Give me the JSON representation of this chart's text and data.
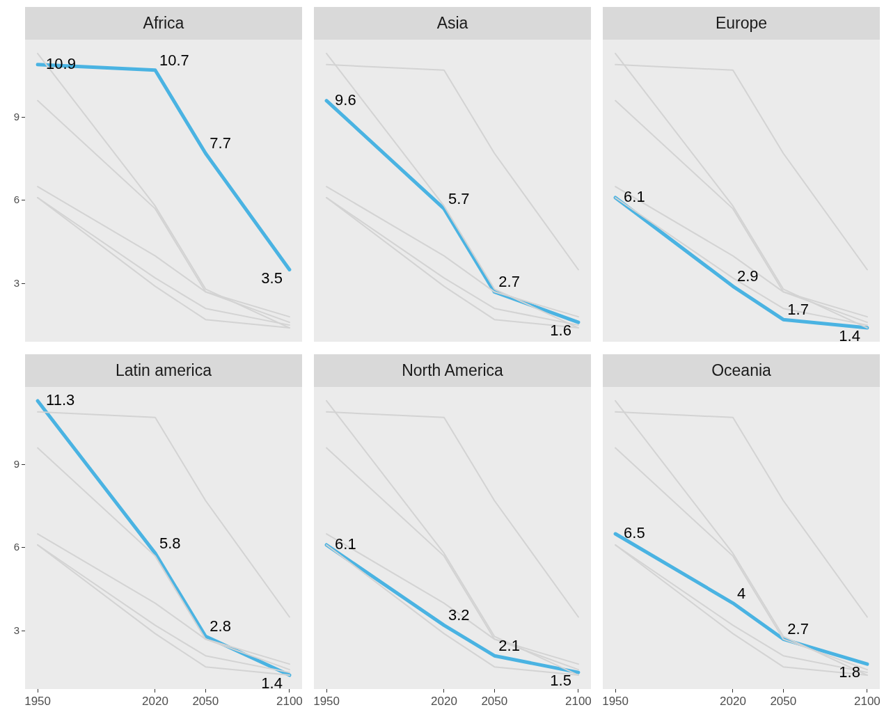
{
  "chart_data": [
    {
      "type": "line",
      "title": "Africa",
      "x": [
        1950,
        2020,
        2050,
        2100
      ],
      "xlim": [
        1942.5,
        2107.5
      ],
      "xticks": [
        1950,
        2020,
        2050,
        2100
      ],
      "ylim": [
        0.9,
        11.8
      ],
      "yticks": [
        3,
        6,
        9
      ],
      "tick_labels": "y",
      "legend": false,
      "grid": false,
      "series": [
        {
          "color": "#d3d3d3",
          "values": [
            9.6,
            5.7,
            2.7,
            1.6
          ]
        },
        {
          "color": "#d3d3d3",
          "values": [
            6.1,
            2.9,
            1.7,
            1.4
          ]
        },
        {
          "color": "#d3d3d3",
          "values": [
            11.3,
            5.8,
            2.8,
            1.4
          ]
        },
        {
          "color": "#d3d3d3",
          "values": [
            6.1,
            3.2,
            2.1,
            1.5
          ]
        },
        {
          "color": "#d3d3d3",
          "values": [
            6.5,
            4,
            2.7,
            1.8
          ]
        },
        {
          "color": "#4ab3e2",
          "values": [
            10.9,
            10.7,
            7.7,
            3.5
          ],
          "value_labels": [
            "10.9",
            "10.7",
            "7.7",
            "3.5"
          ]
        }
      ]
    },
    {
      "type": "line",
      "title": "Asia",
      "x": [
        1950,
        2020,
        2050,
        2100
      ],
      "xlim": [
        1942.5,
        2107.5
      ],
      "xticks": [
        1950,
        2020,
        2050,
        2100
      ],
      "ylim": [
        0.9,
        11.8
      ],
      "yticks": [
        3,
        6,
        9
      ],
      "tick_labels": false,
      "legend": false,
      "grid": false,
      "series": [
        {
          "color": "#d3d3d3",
          "values": [
            10.9,
            10.7,
            7.7,
            3.5
          ]
        },
        {
          "color": "#d3d3d3",
          "values": [
            6.1,
            2.9,
            1.7,
            1.4
          ]
        },
        {
          "color": "#d3d3d3",
          "values": [
            11.3,
            5.8,
            2.8,
            1.4
          ]
        },
        {
          "color": "#d3d3d3",
          "values": [
            6.1,
            3.2,
            2.1,
            1.5
          ]
        },
        {
          "color": "#d3d3d3",
          "values": [
            6.5,
            4,
            2.7,
            1.8
          ]
        },
        {
          "color": "#4ab3e2",
          "values": [
            9.6,
            5.7,
            2.7,
            1.6
          ],
          "value_labels": [
            "9.6",
            "5.7",
            "2.7",
            "1.6"
          ]
        }
      ]
    },
    {
      "type": "line",
      "title": "Europe",
      "x": [
        1950,
        2020,
        2050,
        2100
      ],
      "xlim": [
        1942.5,
        2107.5
      ],
      "xticks": [
        1950,
        2020,
        2050,
        2100
      ],
      "ylim": [
        0.9,
        11.8
      ],
      "yticks": [
        3,
        6,
        9
      ],
      "tick_labels": false,
      "legend": false,
      "grid": false,
      "series": [
        {
          "color": "#d3d3d3",
          "values": [
            10.9,
            10.7,
            7.7,
            3.5
          ]
        },
        {
          "color": "#d3d3d3",
          "values": [
            9.6,
            5.7,
            2.7,
            1.6
          ]
        },
        {
          "color": "#d3d3d3",
          "values": [
            11.3,
            5.8,
            2.8,
            1.4
          ]
        },
        {
          "color": "#d3d3d3",
          "values": [
            6.1,
            3.2,
            2.1,
            1.5
          ]
        },
        {
          "color": "#d3d3d3",
          "values": [
            6.5,
            4,
            2.7,
            1.8
          ]
        },
        {
          "color": "#4ab3e2",
          "values": [
            6.1,
            2.9,
            1.7,
            1.4
          ],
          "value_labels": [
            "6.1",
            "2.9",
            "1.7",
            "1.4"
          ]
        }
      ]
    },
    {
      "type": "line",
      "title": "Latin america",
      "x": [
        1950,
        2020,
        2050,
        2100
      ],
      "xlim": [
        1942.5,
        2107.5
      ],
      "xticks": [
        1950,
        2020,
        2050,
        2100
      ],
      "ylim": [
        0.9,
        11.8
      ],
      "yticks": [
        3,
        6,
        9
      ],
      "legend": false,
      "grid": false,
      "series": [
        {
          "color": "#d3d3d3",
          "values": [
            10.9,
            10.7,
            7.7,
            3.5
          ]
        },
        {
          "color": "#d3d3d3",
          "values": [
            9.6,
            5.7,
            2.7,
            1.6
          ]
        },
        {
          "color": "#d3d3d3",
          "values": [
            6.1,
            2.9,
            1.7,
            1.4
          ]
        },
        {
          "color": "#d3d3d3",
          "values": [
            6.1,
            3.2,
            2.1,
            1.5
          ]
        },
        {
          "color": "#d3d3d3",
          "values": [
            6.5,
            4,
            2.7,
            1.8
          ]
        },
        {
          "color": "#4ab3e2",
          "values": [
            11.3,
            5.8,
            2.8,
            1.4
          ],
          "value_labels": [
            "11.3",
            "5.8",
            "2.8",
            "1.4"
          ]
        }
      ]
    },
    {
      "type": "line",
      "title": "North America",
      "x": [
        1950,
        2020,
        2050,
        2100
      ],
      "xlim": [
        1942.5,
        2107.5
      ],
      "xticks": [
        1950,
        2020,
        2050,
        2100
      ],
      "ylim": [
        0.9,
        11.8
      ],
      "yticks": [
        3,
        6,
        9
      ],
      "tick_labels": "x",
      "legend": false,
      "grid": false,
      "series": [
        {
          "color": "#d3d3d3",
          "values": [
            10.9,
            10.7,
            7.7,
            3.5
          ]
        },
        {
          "color": "#d3d3d3",
          "values": [
            9.6,
            5.7,
            2.7,
            1.6
          ]
        },
        {
          "color": "#d3d3d3",
          "values": [
            6.1,
            2.9,
            1.7,
            1.4
          ]
        },
        {
          "color": "#d3d3d3",
          "values": [
            11.3,
            5.8,
            2.8,
            1.4
          ]
        },
        {
          "color": "#d3d3d3",
          "values": [
            6.5,
            4,
            2.7,
            1.8
          ]
        },
        {
          "color": "#4ab3e2",
          "values": [
            6.1,
            3.2,
            2.1,
            1.5
          ],
          "value_labels": [
            "6.1",
            "3.2",
            "2.1",
            "1.5"
          ]
        }
      ]
    },
    {
      "type": "line",
      "title": "Oceania",
      "x": [
        1950,
        2020,
        2050,
        2100
      ],
      "xlim": [
        1942.5,
        2107.5
      ],
      "xticks": [
        1950,
        2020,
        2050,
        2100
      ],
      "ylim": [
        0.9,
        11.8
      ],
      "yticks": [
        3,
        6,
        9
      ],
      "tick_labels": "x",
      "legend": false,
      "grid": false,
      "series": [
        {
          "color": "#d3d3d3",
          "values": [
            10.9,
            10.7,
            7.7,
            3.5
          ]
        },
        {
          "color": "#d3d3d3",
          "values": [
            9.6,
            5.7,
            2.7,
            1.6
          ]
        },
        {
          "color": "#d3d3d3",
          "values": [
            6.1,
            2.9,
            1.7,
            1.4
          ]
        },
        {
          "color": "#d3d3d3",
          "values": [
            11.3,
            5.8,
            2.8,
            1.4
          ]
        },
        {
          "color": "#d3d3d3",
          "values": [
            6.1,
            3.2,
            2.1,
            1.5
          ]
        },
        {
          "color": "#4ab3e2",
          "values": [
            6.5,
            4,
            2.7,
            1.8
          ],
          "value_labels": [
            "6.5",
            "4",
            "2.7",
            "1.8"
          ]
        }
      ]
    }
  ]
}
